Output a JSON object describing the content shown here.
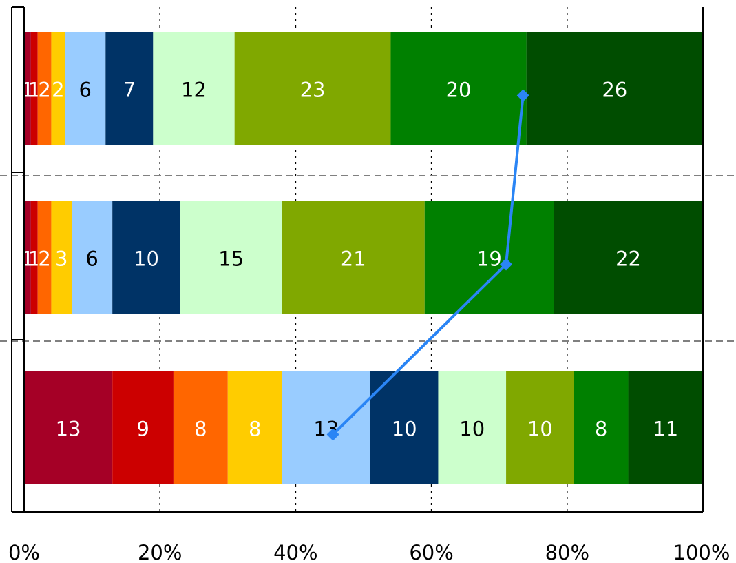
{
  "chart_data": {
    "type": "bar",
    "orientation": "horizontal",
    "stacked": "percent",
    "xlim": [
      0,
      100
    ],
    "x_ticks": [
      "0%",
      "20%",
      "40%",
      "60%",
      "80%",
      "100%"
    ],
    "grid": "vertical dotted",
    "segment_colors": [
      "#a50026",
      "#cc0000",
      "#ff6600",
      "#ffcc00",
      "#99ccff",
      "#003366",
      "#ccffcc",
      "#80a800",
      "#008000",
      "#004d00"
    ],
    "label_colors": [
      "#ffffff",
      "#ffffff",
      "#ffffff",
      "#ffffff",
      "#000000",
      "#ffffff",
      "#000000",
      "#ffffff",
      "#ffffff",
      "#ffffff"
    ],
    "bars": [
      {
        "values": [
          1,
          1,
          2,
          2,
          6,
          7,
          12,
          23,
          20,
          26
        ],
        "labels": [
          "1",
          "1",
          "2",
          "2",
          "6",
          "7",
          "12",
          "23",
          "20",
          "26"
        ]
      },
      {
        "values": [
          1,
          1,
          2,
          3,
          6,
          10,
          15,
          21,
          19,
          22
        ],
        "labels": [
          "1",
          "1",
          "2",
          "3",
          "6",
          "10",
          "15",
          "21",
          "19",
          "22"
        ]
      },
      {
        "values": [
          13,
          9,
          8,
          8,
          13,
          10,
          10,
          10,
          8,
          11
        ],
        "labels": [
          "13",
          "9",
          "8",
          "8",
          "13",
          "10",
          "10",
          "10",
          "8",
          "11"
        ]
      }
    ],
    "line": {
      "color": "#2a85f5",
      "marker": "diamond",
      "values": [
        73.5,
        71,
        45.5
      ]
    }
  }
}
